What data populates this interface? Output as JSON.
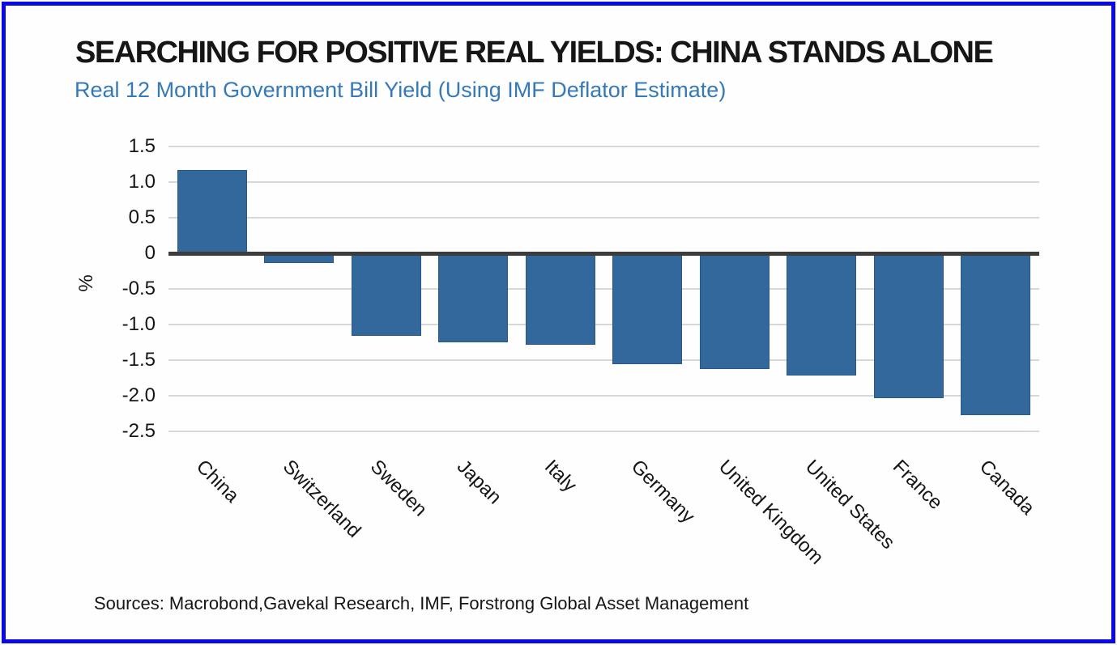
{
  "frame": {
    "border_color": "#0a0ae8",
    "background": "#fefefe"
  },
  "header": {
    "title_color": "#161616",
    "subtitle_color": "#3579b8"
  },
  "chart_data": {
    "type": "bar",
    "title": "SEARCHING FOR POSITIVE REAL YIELDS: CHINA STANDS ALONE",
    "subtitle": "Real 12 Month Government Bill Yield (Using IMF Deflator Estimate)",
    "categories": [
      "China",
      "Switzerland",
      "Sweden",
      "Japan",
      "Italy",
      "Germany",
      "United Kingdom",
      "United States",
      "France",
      "Canada"
    ],
    "values": [
      1.17,
      -0.14,
      -1.16,
      -1.25,
      -1.28,
      -1.56,
      -1.63,
      -1.72,
      -2.03,
      -2.27
    ],
    "xlabel": "",
    "ylabel": "%",
    "ylim": [
      -2.5,
      1.5
    ],
    "ytick_values": [
      1.5,
      1.0,
      0.5,
      0,
      -0.5,
      -1.0,
      -1.5,
      -2.0,
      -2.5
    ],
    "ytick_labels": [
      "1.5",
      "1.0",
      "0.5",
      "0",
      "-0.5",
      "-1.0",
      "-1.5",
      "-2.0",
      "-2.5"
    ],
    "xtick_rotation_deg": 45,
    "grid": "horizontal",
    "legend": "none",
    "bar_color": "#33689d",
    "bar_border_color": "#2b5884",
    "gridline_color": "#d7d7d7",
    "zeroline_color": "#3c3c3c"
  },
  "footer": {
    "source": "Sources: Macrobond,Gavekal Research, IMF, Forstrong Global Asset Management"
  }
}
